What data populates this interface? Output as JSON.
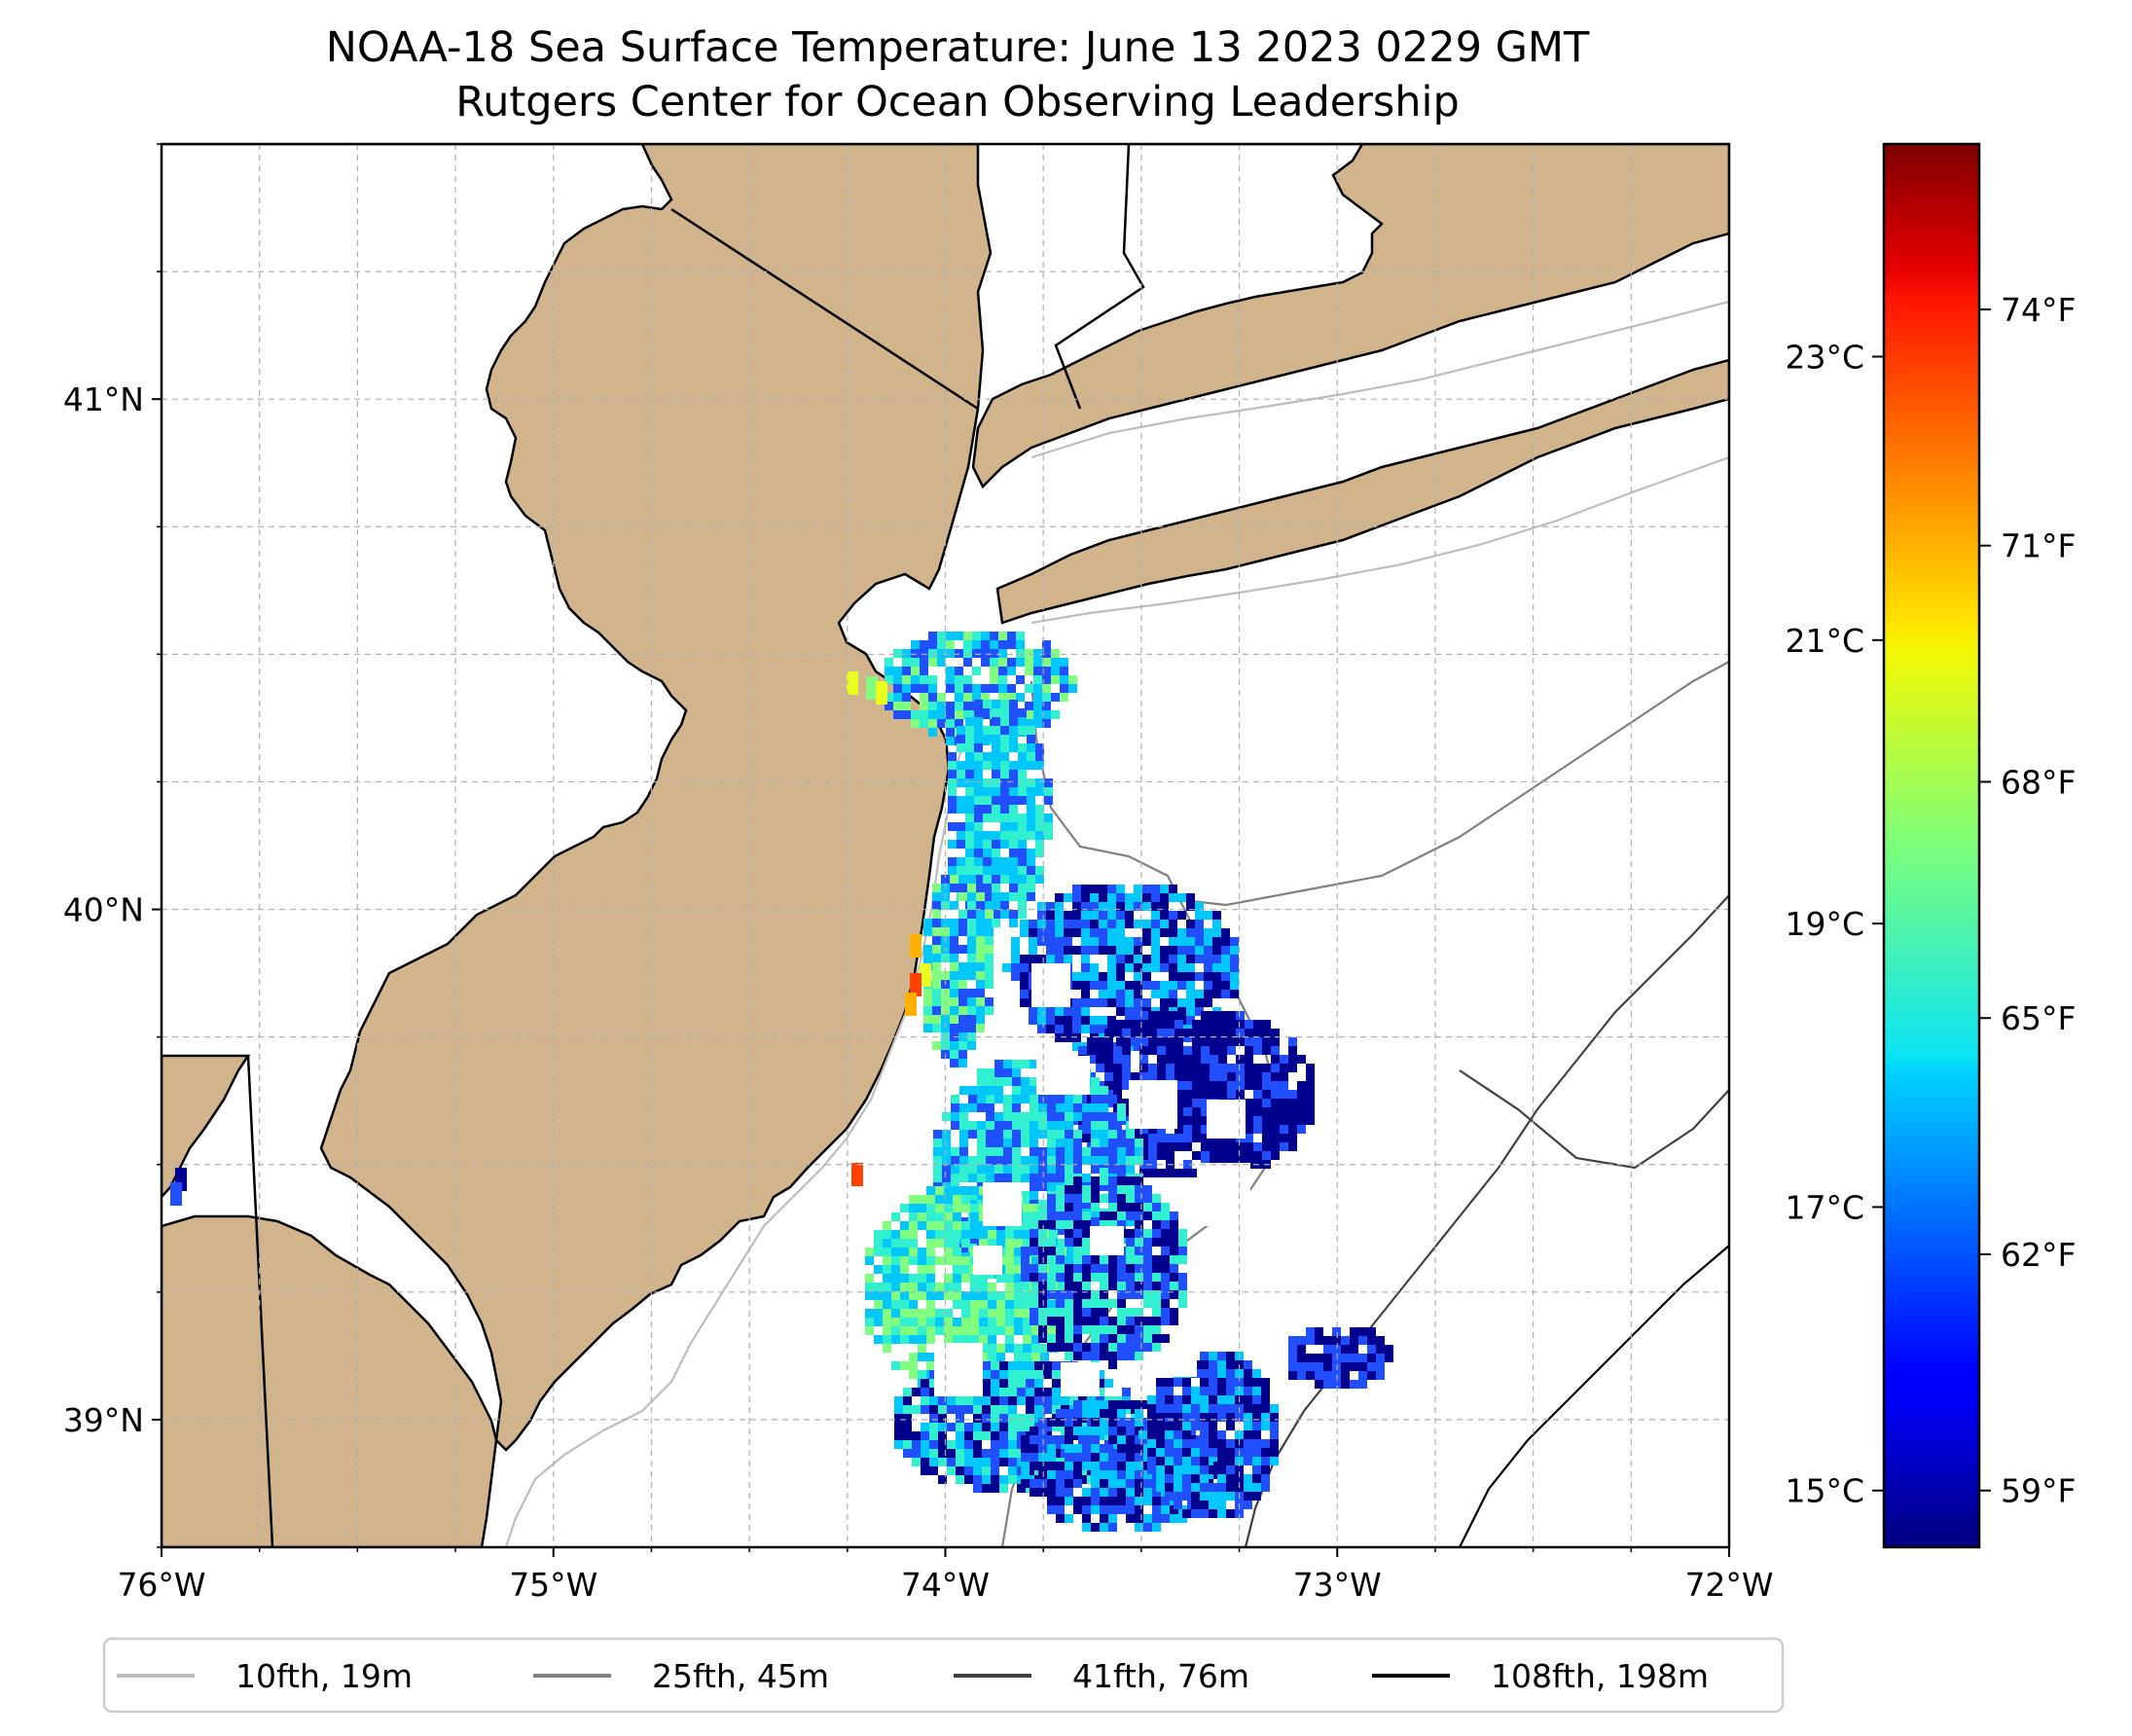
{
  "title": "NOAA-18 Sea Surface Temperature: June 13 2023 0229 GMT",
  "subtitle": "Rutgers Center for Ocean Observing Leadership",
  "map": {
    "lon_range": [
      -76,
      -72
    ],
    "lat_range": [
      38.75,
      41.5
    ],
    "land_color": "#d2b48c",
    "water_color": "#ffffff",
    "lon_ticks": [
      {
        "value": -76,
        "label": "76°W"
      },
      {
        "value": -75,
        "label": "75°W"
      },
      {
        "value": -74,
        "label": "74°W"
      },
      {
        "value": -73,
        "label": "73°W"
      },
      {
        "value": -72,
        "label": "72°W"
      }
    ],
    "lat_ticks": [
      {
        "value": 41,
        "label": "41°N"
      },
      {
        "value": 40,
        "label": "40°N"
      },
      {
        "value": 39,
        "label": "39°N"
      }
    ],
    "grid": true
  },
  "colorbar": {
    "colormap": "jet",
    "celsius_ticks": [
      {
        "value": 15,
        "label": "15°C"
      },
      {
        "value": 17,
        "label": "17°C"
      },
      {
        "value": 19,
        "label": "19°C"
      },
      {
        "value": 21,
        "label": "21°C"
      },
      {
        "value": 23,
        "label": "23°C"
      }
    ],
    "fahrenheit_ticks": [
      {
        "value": 59,
        "label": "59°F"
      },
      {
        "value": 62,
        "label": "62°F"
      },
      {
        "value": 65,
        "label": "65°F"
      },
      {
        "value": 68,
        "label": "68°F"
      },
      {
        "value": 71,
        "label": "71°F"
      },
      {
        "value": 74,
        "label": "74°F"
      }
    ]
  },
  "legend": {
    "placement": "bottom",
    "items": [
      {
        "label": "10fth, 19m",
        "color": "#bdbdbd"
      },
      {
        "label": "25fth, 45m",
        "color": "#808080"
      },
      {
        "label": "41fth, 76m",
        "color": "#404040"
      },
      {
        "label": "108fth, 198m",
        "color": "#000000"
      }
    ]
  },
  "sst_colors": {
    "cold": "#00008f",
    "blue": "#1f4fff",
    "cyan": "#00c8ff",
    "aqua": "#30f0d0",
    "green": "#80ff80",
    "yellow": "#e8ff20",
    "orange": "#ffb000",
    "red": "#ff4000"
  }
}
